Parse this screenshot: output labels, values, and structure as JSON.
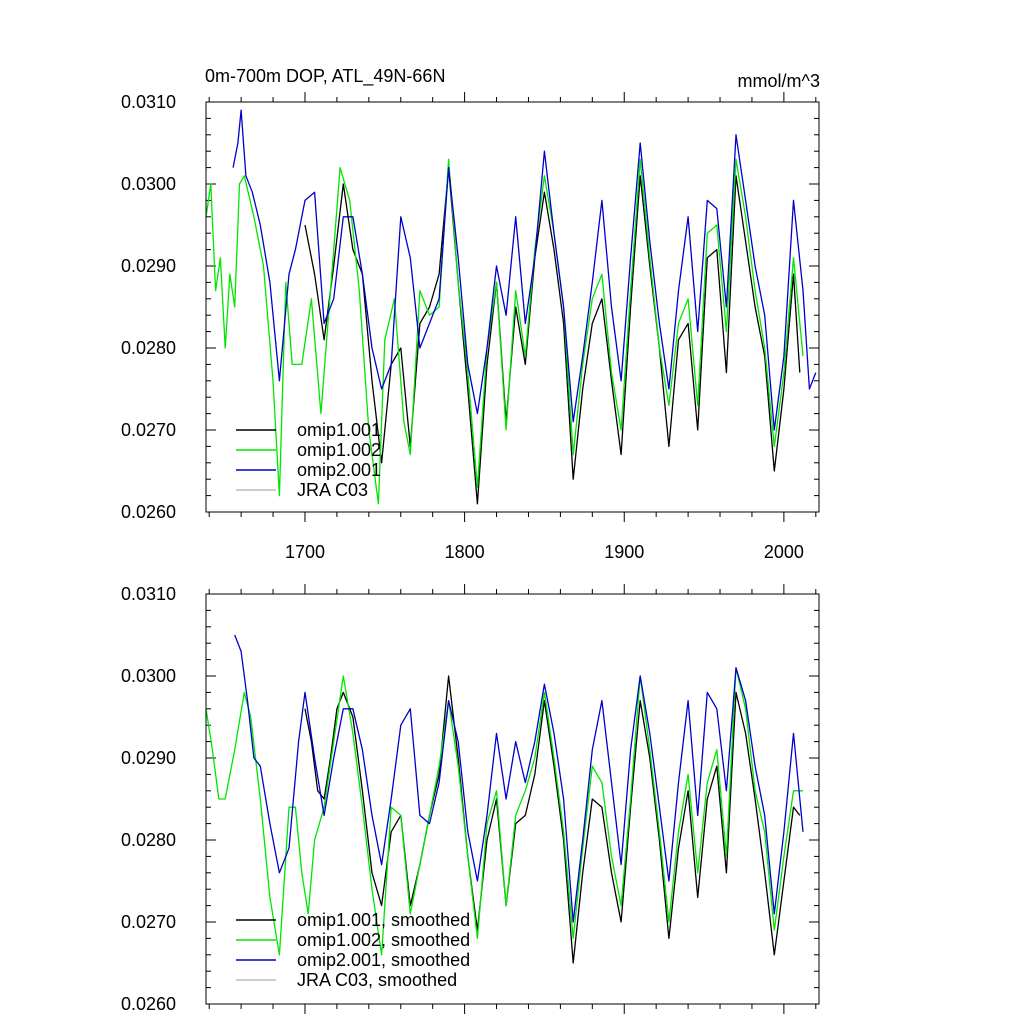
{
  "chart_data": [
    {
      "type": "line",
      "title": "0m-700m DOP, ATL_49N-66N",
      "units": "mmol/m^3",
      "xlabel": "",
      "ylabel": "",
      "xlim": [
        1638,
        2022
      ],
      "ylim": [
        0.026,
        0.031
      ],
      "xticks": [
        1700,
        1800,
        1900,
        2000
      ],
      "xtick_labels": [
        "1700",
        "1800",
        "1900",
        "2000"
      ],
      "yticks": [
        0.026,
        0.027,
        0.028,
        0.029,
        0.03,
        0.031
      ],
      "ytick_labels": [
        "0.0260",
        "0.0270",
        "0.0280",
        "0.0290",
        "0.0300",
        "0.0310"
      ],
      "legend_position": "bottom-left",
      "legend": [
        "omip1.001",
        "omip1.002",
        "omip2.001",
        "JRA C03"
      ],
      "colors": {
        "omip1.001": "#000000",
        "omip1.002": "#00e600",
        "omip2.001": "#0000cc",
        "JRA C03": "#bbbbbb"
      },
      "series": [
        {
          "name": "omip1.001",
          "x": [
            1700,
            1706,
            1712,
            1718,
            1724,
            1730,
            1736,
            1742,
            1748,
            1754,
            1760,
            1766,
            1772,
            1778,
            1784,
            1790,
            1796,
            1802,
            1808,
            1814,
            1820,
            1826,
            1832,
            1838,
            1844,
            1850,
            1856,
            1862,
            1868,
            1874,
            1880,
            1886,
            1892,
            1898,
            1904,
            1910,
            1916,
            1922,
            1928,
            1934,
            1940,
            1946,
            1952,
            1958,
            1964,
            1970,
            1976,
            1982,
            1988,
            1994,
            2000,
            2006,
            2010
          ],
          "values": [
            0.0295,
            0.0289,
            0.0281,
            0.029,
            0.03,
            0.0292,
            0.0289,
            0.0276,
            0.0266,
            0.0278,
            0.028,
            0.0268,
            0.0283,
            0.0285,
            0.0289,
            0.0302,
            0.0288,
            0.0275,
            0.0261,
            0.0278,
            0.0288,
            0.0271,
            0.0285,
            0.0278,
            0.0291,
            0.0299,
            0.0292,
            0.0283,
            0.0264,
            0.0275,
            0.0283,
            0.0286,
            0.0276,
            0.0267,
            0.0285,
            0.0301,
            0.029,
            0.028,
            0.0268,
            0.0281,
            0.0283,
            0.027,
            0.0291,
            0.0292,
            0.0277,
            0.0301,
            0.0293,
            0.0285,
            0.0279,
            0.0265,
            0.0275,
            0.0289,
            0.0277
          ]
        },
        {
          "name": "omip1.002",
          "x": [
            1638,
            1641,
            1644,
            1647,
            1650,
            1653,
            1656,
            1659,
            1662,
            1668,
            1674,
            1680,
            1684,
            1688,
            1692,
            1698,
            1704,
            1710,
            1716,
            1722,
            1728,
            1734,
            1740,
            1746,
            1750,
            1756,
            1762,
            1766,
            1772,
            1778,
            1784,
            1790,
            1796,
            1802,
            1808,
            1814,
            1820,
            1826,
            1832,
            1838,
            1844,
            1850,
            1856,
            1862,
            1868,
            1874,
            1880,
            1886,
            1892,
            1898,
            1904,
            1910,
            1916,
            1922,
            1928,
            1934,
            1940,
            1946,
            1952,
            1958,
            1964,
            1970,
            1976,
            1982,
            1988,
            1994,
            2000,
            2006,
            2012
          ],
          "values": [
            0.0296,
            0.03,
            0.0287,
            0.0291,
            0.028,
            0.0289,
            0.0285,
            0.03,
            0.0301,
            0.0296,
            0.029,
            0.0276,
            0.0262,
            0.0288,
            0.0278,
            0.0278,
            0.0286,
            0.0272,
            0.0287,
            0.0302,
            0.0298,
            0.0287,
            0.027,
            0.0261,
            0.0281,
            0.0286,
            0.0271,
            0.0267,
            0.0287,
            0.0284,
            0.0285,
            0.0303,
            0.0288,
            0.0277,
            0.0263,
            0.028,
            0.0288,
            0.027,
            0.0287,
            0.0279,
            0.0292,
            0.0301,
            0.0294,
            0.0285,
            0.0267,
            0.0278,
            0.0286,
            0.0289,
            0.0277,
            0.027,
            0.0287,
            0.0303,
            0.0291,
            0.028,
            0.0273,
            0.0283,
            0.0286,
            0.0273,
            0.0294,
            0.0295,
            0.0282,
            0.0303,
            0.0296,
            0.0287,
            0.028,
            0.0268,
            0.0277,
            0.0291,
            0.0279
          ]
        },
        {
          "name": "omip2.001",
          "x": [
            1655,
            1658,
            1660,
            1663,
            1667,
            1672,
            1678,
            1684,
            1690,
            1694,
            1700,
            1706,
            1712,
            1718,
            1724,
            1730,
            1736,
            1742,
            1748,
            1754,
            1760,
            1766,
            1772,
            1778,
            1784,
            1790,
            1796,
            1802,
            1808,
            1814,
            1820,
            1826,
            1832,
            1838,
            1844,
            1850,
            1856,
            1862,
            1868,
            1874,
            1880,
            1886,
            1892,
            1898,
            1904,
            1910,
            1916,
            1922,
            1928,
            1934,
            1940,
            1946,
            1952,
            1958,
            1964,
            1970,
            1976,
            1982,
            1988,
            1994,
            2000,
            2006,
            2012,
            2016,
            2020
          ],
          "values": [
            0.0302,
            0.0305,
            0.0309,
            0.0301,
            0.0299,
            0.0295,
            0.0288,
            0.0276,
            0.0289,
            0.0292,
            0.0298,
            0.0299,
            0.0283,
            0.0286,
            0.0296,
            0.0296,
            0.0289,
            0.028,
            0.0275,
            0.0278,
            0.0296,
            0.0291,
            0.028,
            0.0283,
            0.0286,
            0.0302,
            0.0291,
            0.0278,
            0.0272,
            0.028,
            0.029,
            0.0284,
            0.0296,
            0.0283,
            0.0291,
            0.0304,
            0.0294,
            0.0285,
            0.0271,
            0.0279,
            0.0288,
            0.0298,
            0.0285,
            0.0276,
            0.0291,
            0.0305,
            0.0293,
            0.0283,
            0.0275,
            0.0287,
            0.0296,
            0.0282,
            0.0298,
            0.0297,
            0.0285,
            0.0306,
            0.0298,
            0.029,
            0.0284,
            0.027,
            0.0279,
            0.0298,
            0.0287,
            0.0275,
            0.0277
          ]
        }
      ]
    },
    {
      "type": "line",
      "title": "",
      "units": "",
      "xlabel": "",
      "ylabel": "",
      "xlim": [
        1638,
        2022
      ],
      "ylim": [
        0.026,
        0.031
      ],
      "xticks": [
        1700,
        1800,
        1900,
        2000
      ],
      "xtick_labels": [],
      "yticks": [
        0.026,
        0.027,
        0.028,
        0.029,
        0.03,
        0.031
      ],
      "ytick_labels": [
        "0.0260",
        "0.0270",
        "0.0280",
        "0.0290",
        "0.0300",
        "0.0310"
      ],
      "legend_position": "bottom-left",
      "legend": [
        "omip1.001, smoothed",
        "omip1.002, smoothed",
        "omip2.001, smoothed",
        "JRA C03, smoothed"
      ],
      "colors": {
        "omip1.001, smoothed": "#000000",
        "omip1.002, smoothed": "#00e600",
        "omip2.001, smoothed": "#0000cc",
        "JRA C03, smoothed": "#bbbbbb"
      },
      "series": [
        {
          "name": "omip1.001, smoothed",
          "x": [
            1700,
            1704,
            1708,
            1712,
            1716,
            1720,
            1724,
            1730,
            1736,
            1742,
            1748,
            1754,
            1760,
            1766,
            1772,
            1778,
            1784,
            1790,
            1796,
            1802,
            1808,
            1814,
            1820,
            1826,
            1832,
            1838,
            1844,
            1850,
            1856,
            1862,
            1868,
            1874,
            1880,
            1886,
            1892,
            1898,
            1904,
            1910,
            1916,
            1922,
            1928,
            1934,
            1940,
            1946,
            1952,
            1958,
            1964,
            1970,
            1976,
            1982,
            1988,
            1994,
            2000,
            2006,
            2010
          ],
          "values": [
            0.0296,
            0.0292,
            0.0286,
            0.0285,
            0.029,
            0.0296,
            0.0298,
            0.0295,
            0.0286,
            0.0276,
            0.0272,
            0.0281,
            0.0283,
            0.0272,
            0.0277,
            0.0283,
            0.0288,
            0.03,
            0.029,
            0.0278,
            0.0269,
            0.028,
            0.0285,
            0.0272,
            0.0282,
            0.0283,
            0.0288,
            0.0297,
            0.0289,
            0.028,
            0.0265,
            0.0276,
            0.0285,
            0.0284,
            0.0276,
            0.027,
            0.0284,
            0.0297,
            0.029,
            0.028,
            0.0268,
            0.0279,
            0.0286,
            0.0273,
            0.0285,
            0.0289,
            0.0276,
            0.0298,
            0.0293,
            0.0285,
            0.0276,
            0.0266,
            0.0275,
            0.0284,
            0.0283
          ]
        },
        {
          "name": "omip1.002, smoothed",
          "x": [
            1638,
            1642,
            1646,
            1650,
            1656,
            1662,
            1666,
            1672,
            1678,
            1684,
            1690,
            1694,
            1698,
            1702,
            1706,
            1712,
            1718,
            1724,
            1730,
            1736,
            1742,
            1748,
            1754,
            1760,
            1766,
            1772,
            1778,
            1784,
            1790,
            1796,
            1802,
            1808,
            1814,
            1820,
            1826,
            1832,
            1838,
            1844,
            1850,
            1856,
            1862,
            1868,
            1874,
            1880,
            1886,
            1892,
            1898,
            1904,
            1910,
            1916,
            1922,
            1928,
            1934,
            1940,
            1946,
            1952,
            1958,
            1964,
            1970,
            1976,
            1982,
            1988,
            1994,
            2000,
            2006,
            2012
          ],
          "values": [
            0.0296,
            0.0291,
            0.0285,
            0.0285,
            0.0291,
            0.0298,
            0.0295,
            0.0285,
            0.0273,
            0.0266,
            0.0284,
            0.0284,
            0.0276,
            0.0271,
            0.028,
            0.0284,
            0.0292,
            0.03,
            0.0293,
            0.0284,
            0.0274,
            0.0266,
            0.0284,
            0.0283,
            0.0271,
            0.0277,
            0.0283,
            0.0289,
            0.0297,
            0.0289,
            0.0278,
            0.0268,
            0.0282,
            0.0286,
            0.0272,
            0.0283,
            0.0286,
            0.029,
            0.0298,
            0.029,
            0.0281,
            0.0268,
            0.0279,
            0.0289,
            0.0287,
            0.0278,
            0.0272,
            0.0285,
            0.03,
            0.0291,
            0.0281,
            0.027,
            0.0281,
            0.0288,
            0.0276,
            0.0287,
            0.0291,
            0.0278,
            0.0301,
            0.0296,
            0.0286,
            0.0281,
            0.0269,
            0.0278,
            0.0286,
            0.0286
          ]
        },
        {
          "name": "omip2.001, smoothed",
          "x": [
            1656,
            1660,
            1664,
            1668,
            1672,
            1678,
            1684,
            1690,
            1696,
            1700,
            1706,
            1712,
            1718,
            1724,
            1730,
            1736,
            1742,
            1748,
            1754,
            1760,
            1766,
            1772,
            1778,
            1784,
            1790,
            1796,
            1802,
            1808,
            1814,
            1820,
            1826,
            1832,
            1838,
            1844,
            1850,
            1856,
            1862,
            1868,
            1874,
            1880,
            1886,
            1892,
            1898,
            1904,
            1910,
            1916,
            1922,
            1928,
            1934,
            1940,
            1946,
            1952,
            1958,
            1964,
            1970,
            1976,
            1982,
            1988,
            1994,
            2000,
            2006,
            2012
          ],
          "values": [
            0.0305,
            0.0303,
            0.0297,
            0.029,
            0.0289,
            0.0282,
            0.0276,
            0.0279,
            0.0292,
            0.0298,
            0.029,
            0.0283,
            0.029,
            0.0296,
            0.0296,
            0.0291,
            0.0283,
            0.0277,
            0.0285,
            0.0294,
            0.0296,
            0.0283,
            0.0282,
            0.0287,
            0.0297,
            0.0292,
            0.0281,
            0.0275,
            0.0283,
            0.0293,
            0.0285,
            0.0292,
            0.0287,
            0.0292,
            0.0299,
            0.0293,
            0.0285,
            0.027,
            0.028,
            0.0291,
            0.0297,
            0.0287,
            0.0277,
            0.0291,
            0.03,
            0.0293,
            0.0284,
            0.0275,
            0.0287,
            0.0297,
            0.0283,
            0.0298,
            0.0296,
            0.0286,
            0.0301,
            0.0297,
            0.0289,
            0.0283,
            0.0271,
            0.0281,
            0.0293,
            0.0281
          ]
        }
      ]
    }
  ]
}
